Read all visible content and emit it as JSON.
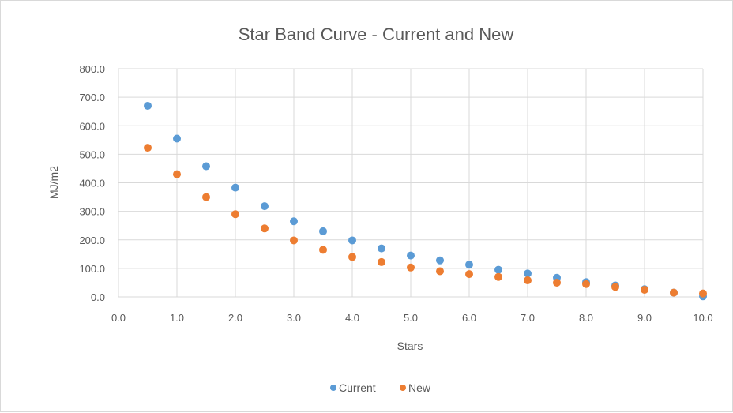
{
  "chart_data": {
    "type": "scatter",
    "title": "Star Band Curve - Current and New",
    "xlabel": "Stars",
    "ylabel": "MJ/m2",
    "xlim": [
      0,
      10
    ],
    "ylim": [
      0,
      800
    ],
    "x_ticks": [
      "0.0",
      "1.0",
      "2.0",
      "3.0",
      "4.0",
      "5.0",
      "6.0",
      "7.0",
      "8.0",
      "9.0",
      "10.0"
    ],
    "y_ticks": [
      "0.0",
      "100.0",
      "200.0",
      "300.0",
      "400.0",
      "500.0",
      "600.0",
      "700.0",
      "800.0"
    ],
    "grid": true,
    "legend_position": "bottom",
    "series": [
      {
        "name": "Current",
        "color": "#5b9bd5",
        "x": [
          0.5,
          1.0,
          1.5,
          2.0,
          2.5,
          3.0,
          3.5,
          4.0,
          4.5,
          5.0,
          5.5,
          6.0,
          6.5,
          7.0,
          7.5,
          8.0,
          8.5,
          9.0,
          9.5,
          10.0
        ],
        "y": [
          670,
          555,
          458,
          383,
          318,
          265,
          230,
          198,
          170,
          145,
          128,
          113,
          95,
          82,
          67,
          52,
          40,
          27,
          15,
          2
        ]
      },
      {
        "name": "New",
        "color": "#ed7d31",
        "x": [
          0.5,
          1.0,
          1.5,
          2.0,
          2.5,
          3.0,
          3.5,
          4.0,
          4.5,
          5.0,
          5.5,
          6.0,
          6.5,
          7.0,
          7.5,
          8.0,
          8.5,
          9.0,
          9.5,
          10.0
        ],
        "y": [
          523,
          430,
          350,
          290,
          240,
          198,
          165,
          140,
          122,
          103,
          90,
          80,
          70,
          58,
          50,
          45,
          35,
          25,
          15,
          12
        ]
      }
    ]
  }
}
